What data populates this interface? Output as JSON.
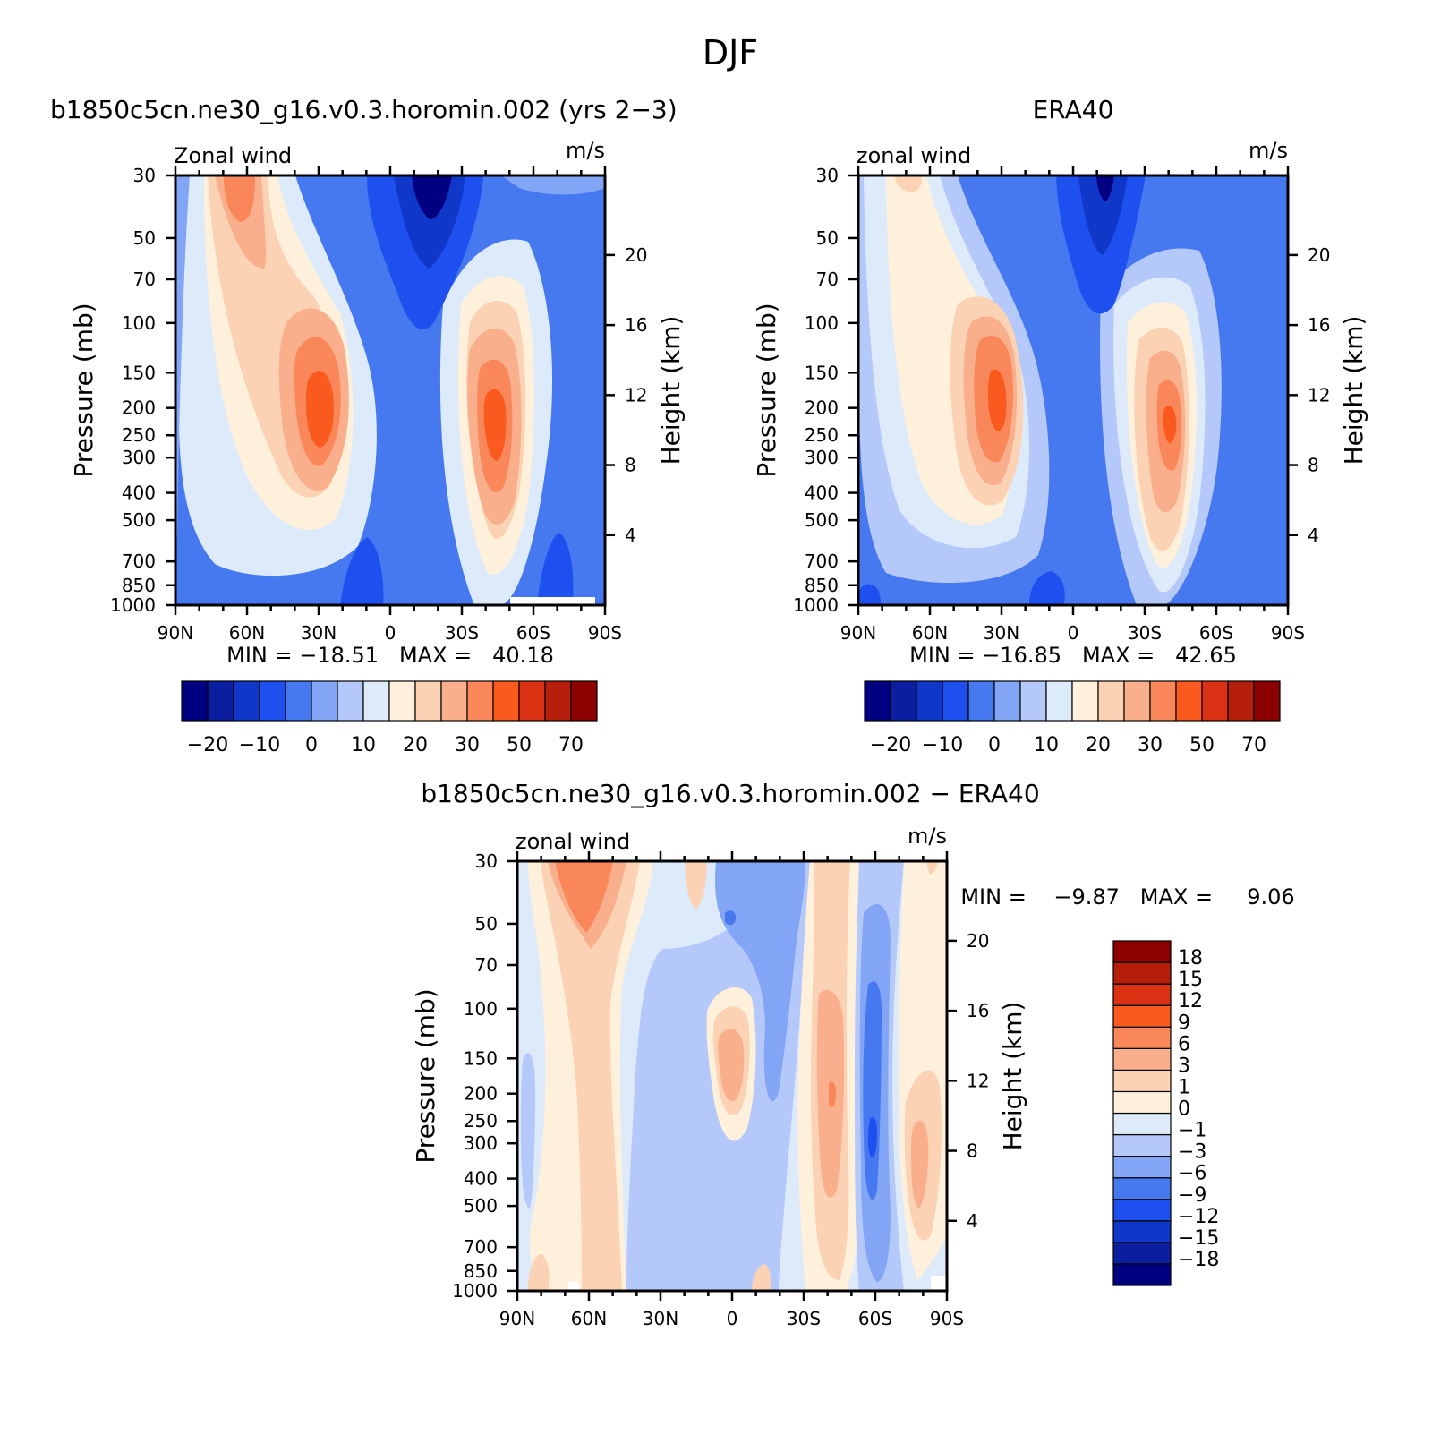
{
  "title": "DJF",
  "colors": {
    "full": [
      "#000080",
      "#0c1ea0",
      "#0f37c8",
      "#1e50f0",
      "#4678f0",
      "#82a5f5",
      "#b4c8fa",
      "#dceafa",
      "#fff0dc",
      "#fcd2b4",
      "#faaf8c",
      "#fa875a",
      "#fa5a1e",
      "#dc3214",
      "#b41e0a",
      "#8c0000"
    ],
    "diff": [
      "#000080",
      "#0c1ea0",
      "#0f37c8",
      "#1e50f0",
      "#4678f0",
      "#82a5f5",
      "#b4c8fa",
      "#dceafa",
      "#fff0dc",
      "#fcd2b4",
      "#faaf8c",
      "#fa875a",
      "#fa5a1e",
      "#dc3214",
      "#b41e0a",
      "#8c0000"
    ]
  },
  "chart_data": [
    {
      "id": "model",
      "type": "contour",
      "title": "b1850c5cn.ne30_g16.v0.3.horomin.002 (yrs 2−3)",
      "left_string": "Zonal wind",
      "right_string": "m/s",
      "ylabel": "Pressure (mb)",
      "ylabel_right": "Height (km)",
      "x_ticks": [
        "90N",
        "60N",
        "30N",
        "0",
        "30S",
        "60S",
        "90S"
      ],
      "x_range": [
        90,
        -90
      ],
      "p_ticks": [
        "30",
        "50",
        "70",
        "100",
        "150",
        "200",
        "250",
        "300",
        "400",
        "500",
        "700",
        "850",
        "1000"
      ],
      "p_range": [
        30,
        1000
      ],
      "h_ticks": [
        "20",
        "16",
        "12",
        "8",
        "4"
      ],
      "min_max": "MIN = −18.51   MAX =   40.18",
      "min": -18.51,
      "max": 40.18,
      "levels": [
        -25,
        -20,
        -15,
        -10,
        -5,
        0,
        5,
        10,
        15,
        20,
        25,
        30,
        40,
        50,
        60,
        70
      ],
      "colorbar_labels": [
        "−20",
        "−10",
        "0",
        "10",
        "20",
        "30",
        "50",
        "70"
      ],
      "colorbar_orientation": "horizontal",
      "features": [
        {
          "lat": -42,
          "p": 200,
          "value": 40
        },
        {
          "lat": 30,
          "p": 200,
          "value": 36
        },
        {
          "lat": 60,
          "p": 30,
          "value": 30
        },
        {
          "lat": -15,
          "p": 30,
          "value": -18
        }
      ]
    },
    {
      "id": "obs",
      "type": "contour",
      "title": "ERA40",
      "left_string": "zonal wind",
      "right_string": "m/s",
      "ylabel": "Pressure (mb)",
      "ylabel_right": "Height (km)",
      "x_ticks": [
        "90N",
        "60N",
        "30N",
        "0",
        "30S",
        "60S",
        "90S"
      ],
      "x_range": [
        90,
        -90
      ],
      "p_ticks": [
        "30",
        "50",
        "70",
        "100",
        "150",
        "200",
        "250",
        "300",
        "400",
        "500",
        "700",
        "850",
        "1000"
      ],
      "p_range": [
        30,
        1000
      ],
      "h_ticks": [
        "20",
        "16",
        "12",
        "8",
        "4"
      ],
      "min_max": "MIN = −16.85   MAX =   42.65",
      "min": -16.85,
      "max": 42.65,
      "levels": [
        -25,
        -20,
        -15,
        -10,
        -5,
        0,
        5,
        10,
        15,
        20,
        25,
        30,
        40,
        50,
        60,
        70
      ],
      "colorbar_labels": [
        "−20",
        "−10",
        "0",
        "10",
        "20",
        "30",
        "50",
        "70"
      ],
      "colorbar_orientation": "horizontal",
      "features": [
        {
          "lat": 30,
          "p": 200,
          "value": 42
        },
        {
          "lat": -45,
          "p": 230,
          "value": 33
        },
        {
          "lat": 65,
          "p": 30,
          "value": 20
        },
        {
          "lat": -15,
          "p": 30,
          "value": -17
        }
      ]
    },
    {
      "id": "diff",
      "type": "contour",
      "title": "b1850c5cn.ne30_g16.v0.3.horomin.002 − ERA40",
      "left_string": "zonal wind",
      "right_string": "m/s",
      "ylabel": "Pressure (mb)",
      "ylabel_right": "Height (km)",
      "x_ticks": [
        "90N",
        "60N",
        "30N",
        "0",
        "30S",
        "60S",
        "90S"
      ],
      "x_range": [
        90,
        -90
      ],
      "p_ticks": [
        "30",
        "50",
        "70",
        "100",
        "150",
        "200",
        "250",
        "300",
        "400",
        "500",
        "700",
        "850",
        "1000"
      ],
      "p_range": [
        30,
        1000
      ],
      "h_ticks": [
        "20",
        "16",
        "12",
        "8",
        "4"
      ],
      "min_max": "MIN =    −9.87   MAX =     9.06",
      "min": -9.87,
      "max": 9.06,
      "levels": [
        -18,
        -15,
        -12,
        -9,
        -6,
        -3,
        -1,
        0,
        1,
        3,
        6,
        9,
        12,
        15,
        18
      ],
      "colorbar_labels": [
        "18",
        "15",
        "12",
        "9",
        "6",
        "3",
        "1",
        "0",
        "−1",
        "−3",
        "−6",
        "−9",
        "−12",
        "−15",
        "−18"
      ],
      "colorbar_orientation": "vertical",
      "features": [
        {
          "lat": 55,
          "p": 40,
          "value": 7
        },
        {
          "lat": -41,
          "p": 200,
          "value": 9
        },
        {
          "lat": 5,
          "p": 150,
          "value": 6
        },
        {
          "lat": -58,
          "p": 300,
          "value": -9
        }
      ]
    }
  ]
}
